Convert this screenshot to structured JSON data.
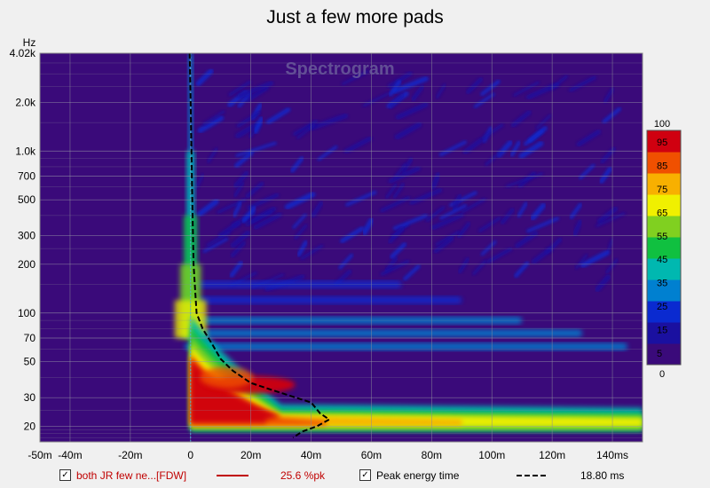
{
  "chart_data": {
    "type": "heatmap",
    "title": "Just a few more pads",
    "watermark": "Spectrogram",
    "ylabel": "Hz",
    "xlim": [
      -50,
      150
    ],
    "ylim": [
      16,
      4020
    ],
    "y_scale": "log",
    "x_ticks": [
      {
        "v": -50,
        "label": "-50m"
      },
      {
        "v": -40,
        "label": "-40m"
      },
      {
        "v": -20,
        "label": "-20m"
      },
      {
        "v": 0,
        "label": "0"
      },
      {
        "v": 20,
        "label": "20m"
      },
      {
        "v": 40,
        "label": "40m"
      },
      {
        "v": 60,
        "label": "60m"
      },
      {
        "v": 80,
        "label": "80m"
      },
      {
        "v": 100,
        "label": "100m"
      },
      {
        "v": 120,
        "label": "120m"
      },
      {
        "v": 140,
        "label": "140ms"
      }
    ],
    "y_ticks": [
      {
        "v": 4020,
        "label": "4.02k"
      },
      {
        "v": 2000,
        "label": "2.0k"
      },
      {
        "v": 1000,
        "label": "1.0k"
      },
      {
        "v": 700,
        "label": "700"
      },
      {
        "v": 500,
        "label": "500"
      },
      {
        "v": 300,
        "label": "300"
      },
      {
        "v": 200,
        "label": "200"
      },
      {
        "v": 100,
        "label": "100"
      },
      {
        "v": 70,
        "label": "70"
      },
      {
        "v": 50,
        "label": "50"
      },
      {
        "v": 30,
        "label": "30"
      },
      {
        "v": 20,
        "label": "20"
      }
    ],
    "colorbar": {
      "range": [
        0,
        100
      ],
      "ticks": [
        100,
        95,
        85,
        75,
        65,
        55,
        45,
        35,
        25,
        15,
        5,
        0
      ]
    },
    "peak_energy_curve": [
      [
        -0.3,
        4020
      ],
      [
        0,
        2000
      ],
      [
        0.5,
        600
      ],
      [
        1,
        200
      ],
      [
        2,
        100
      ],
      [
        4,
        80
      ],
      [
        7,
        65
      ],
      [
        10,
        52
      ],
      [
        14,
        44
      ],
      [
        20,
        37
      ],
      [
        28,
        33
      ],
      [
        35,
        30
      ],
      [
        40,
        28
      ],
      [
        43,
        24
      ],
      [
        46,
        22
      ],
      [
        42,
        20
      ],
      [
        37,
        18.5
      ],
      [
        34,
        17
      ]
    ],
    "color_scale": [
      "#3a0a7a",
      "#1a10a0",
      "#0a2ad0",
      "#0080d0",
      "#00b8b0",
      "#10c040",
      "#80d020",
      "#f0f000",
      "#f8b000",
      "#f05000",
      "#d00010"
    ]
  },
  "legend": {
    "series_name": "both JR  few ne...[FDW]",
    "series_value": "25.6 %pk",
    "series_color": "#c00000",
    "peak_label": "Peak energy time",
    "peak_value": "18.80 ms"
  }
}
